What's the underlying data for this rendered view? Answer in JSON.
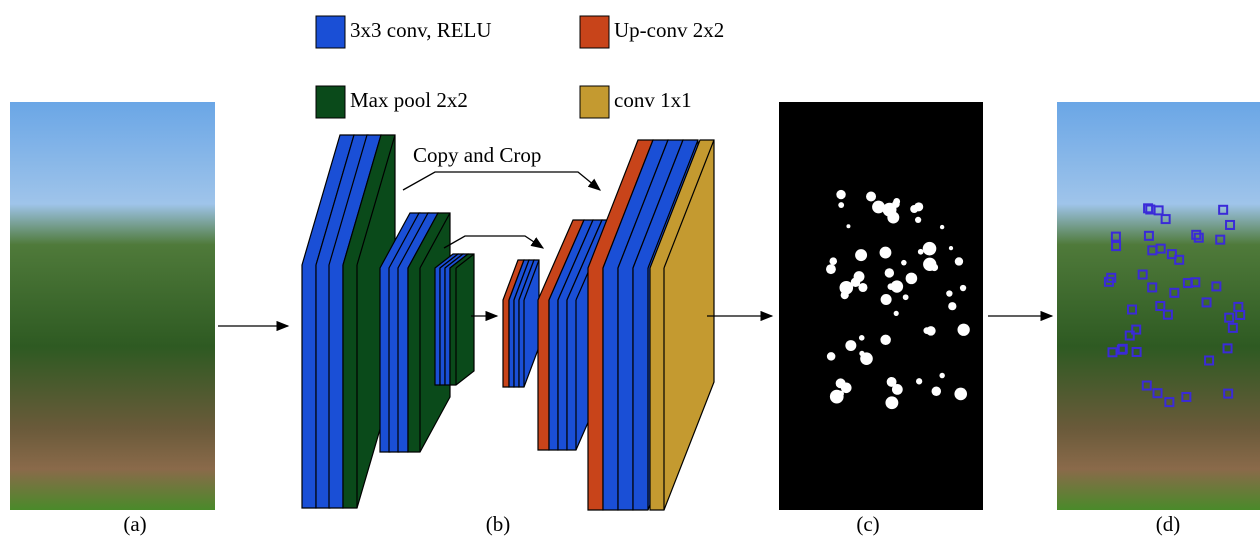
{
  "legend": [
    {
      "label": "3x3 conv, RELU"
    },
    {
      "label": "Up-conv 2x2"
    },
    {
      "label": "Max pool 2x2"
    },
    {
      "label": "conv 1x1"
    }
  ],
  "annotation": "Copy and Crop",
  "panels": [
    "(a)",
    "(b)",
    "(c)",
    "(d)"
  ]
}
